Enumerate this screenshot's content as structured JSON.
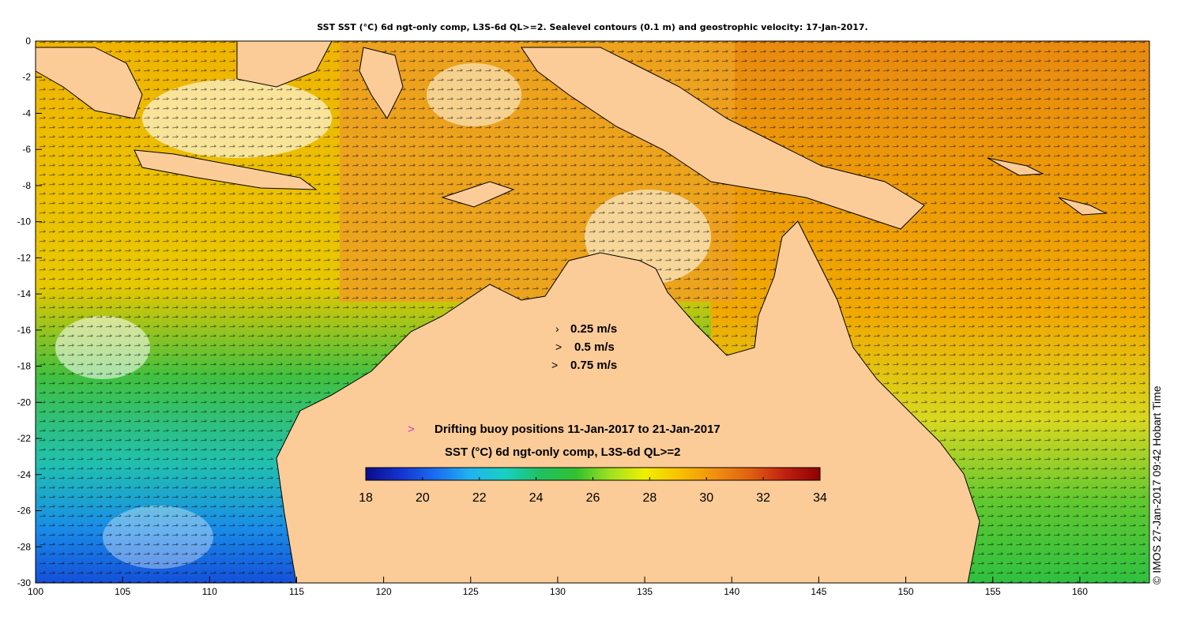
{
  "title": "SST SST (°C) 6d ngt-only comp, L3S-6d QL>=2. Sealevel contours (0.1 m) and geostrophic velocity: 17-Jan-2017.",
  "x_axis": {
    "ticks": [
      "100",
      "105",
      "110",
      "115",
      "120",
      "125",
      "130",
      "135",
      "140",
      "145",
      "150",
      "155",
      "160"
    ],
    "lon_range": [
      100,
      164
    ]
  },
  "y_axis": {
    "ticks": [
      "0",
      "-2",
      "-4",
      "-6",
      "-8",
      "-10",
      "-12",
      "-14",
      "-16",
      "-18",
      "-20",
      "-22",
      "-24",
      "-26",
      "-28",
      "-30"
    ],
    "lat_range": [
      -30,
      0
    ]
  },
  "velocity_legend": [
    {
      "glyph": "›",
      "label": "0.25 m/s"
    },
    {
      "glyph": ">",
      "label": "0.5 m/s"
    },
    {
      "glyph": ">",
      "label": "0.75 m/s"
    }
  ],
  "buoy_legend": {
    "glyph": ">",
    "label": "Drifting buoy positions 11-Jan-2017 to 21-Jan-2017",
    "color": "#cc33cc"
  },
  "colorbar": {
    "title": "SST (°C) 6d ngt-only comp, L3S-6d QL>=2",
    "ticks": [
      "18",
      "20",
      "22",
      "24",
      "26",
      "28",
      "30",
      "32",
      "34"
    ],
    "range": [
      18,
      34
    ],
    "colors": [
      "#0b0b8a",
      "#1433d0",
      "#1a6ef0",
      "#20b4f0",
      "#18d0c0",
      "#20c060",
      "#30c030",
      "#a0e020",
      "#f0f000",
      "#f8c000",
      "#f09010",
      "#e06010",
      "#c02010",
      "#900000"
    ]
  },
  "credit": "© IMOS 27-Jan-2017 09:42 Hobart Time",
  "land_color": "#fccc98",
  "palette": {
    "cool": "#1a70e8",
    "mid": "#20c040",
    "warm": "#f0b000",
    "hot": "#e88010"
  }
}
